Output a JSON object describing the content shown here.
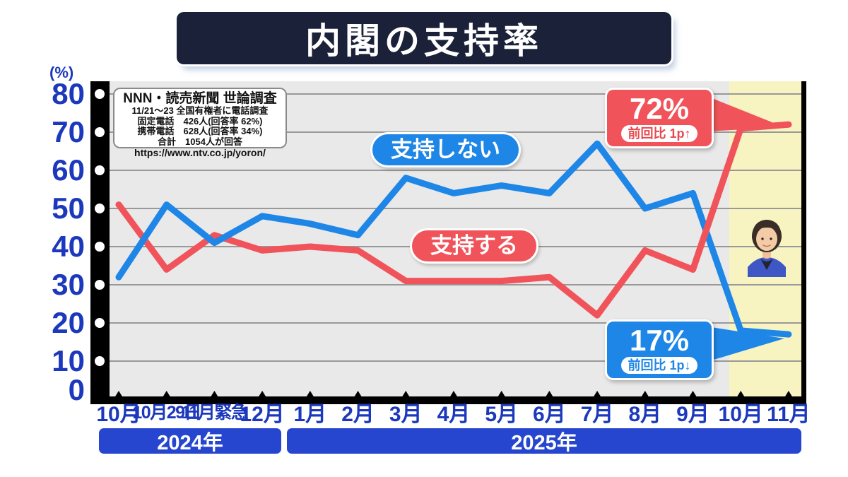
{
  "title": "内閣の支持率",
  "survey_box": {
    "lines": [
      "NNN・読売新聞 世論調査",
      "11/21～23 全国有権者に電話調査",
      "固定電話　426人(回答率 62%)",
      "携帯電話　628人(回答率 34%)",
      "合計　1054人が回答",
      "https://www.ntv.co.jp/yoron/"
    ]
  },
  "colors": {
    "approve": "#f0545a",
    "disapprove": "#1e86e6",
    "axis_text": "#1c38bc",
    "year_bar": "#2646cf",
    "title_bg": "#1a2138",
    "plot_bg": "#e9e9e9",
    "highlight_band": "#f7f4c2",
    "gridline": "#999999"
  },
  "chart_data": {
    "type": "line",
    "title": "内閣の支持率",
    "unit_label": "(%)",
    "ylim": [
      0,
      80
    ],
    "y_ticks": [
      0,
      10,
      20,
      30,
      40,
      50,
      60,
      70,
      80
    ],
    "grid": true,
    "categories": [
      "10月",
      "10月29日",
      "11月緊急",
      "12月",
      "1月",
      "2月",
      "3月",
      "4月",
      "5月",
      "6月",
      "7月",
      "8月",
      "9月",
      "10月",
      "11月"
    ],
    "small_label_indices": [
      1,
      2
    ],
    "series": [
      {
        "name": "支持する",
        "color": "#f0545a",
        "values": [
          51,
          34,
          43,
          39,
          40,
          39,
          31,
          31,
          31,
          32,
          22,
          39,
          34,
          71,
          72
        ]
      },
      {
        "name": "支持しない",
        "color": "#1e86e6",
        "values": [
          32,
          51,
          41,
          48,
          46,
          43,
          58,
          54,
          56,
          54,
          67,
          50,
          54,
          18,
          17
        ]
      }
    ],
    "year_groups": [
      {
        "label": "2024年",
        "from_index": 0,
        "to_index": 3
      },
      {
        "label": "2025年",
        "from_index": 4,
        "to_index": 14
      }
    ],
    "highlight_band": {
      "from_index": 13,
      "to_index": 14,
      "color": "#f7f4c2"
    },
    "annotations": [
      {
        "series": "支持する",
        "value_label": "72%",
        "sub_label": "前回比 1p↑"
      },
      {
        "series": "支持しない",
        "value_label": "17%",
        "sub_label": "前回比 1p↓"
      }
    ]
  }
}
